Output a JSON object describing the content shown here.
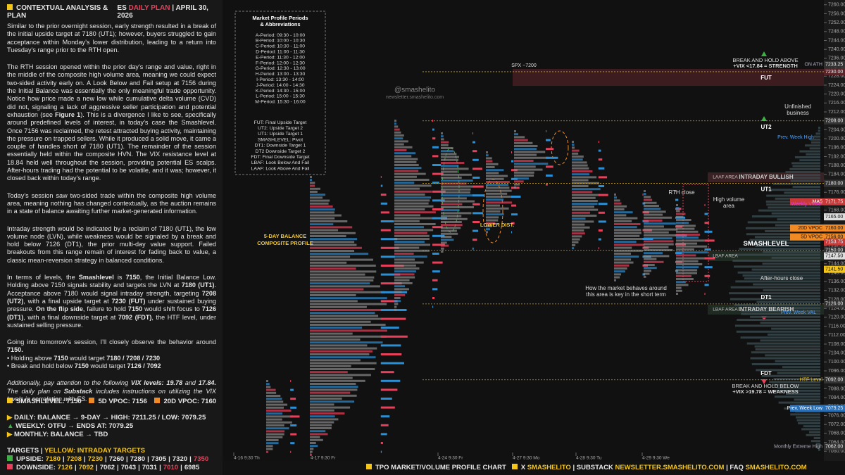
{
  "header": {
    "title": "CONTEXTUAL ANALYSIS & PLAN",
    "plan_prefix": "ES",
    "plan": "DAILY PLAN",
    "separator": "|",
    "date": "APRIL 30, 2026"
  },
  "paragraphs": [
    [
      "Similar to the prior overnight session, early strength resulted in a break of the initial upside target at 7180 (UT1); however, buyers struggled to gain acceptance within Monday’s lower distribution, leading to a return into Tuesday’s range prior to the RTH open."
    ],
    [
      "The RTH session opened within the prior day’s range and value, right in the middle of the composite high volume area, meaning we could expect two-sided activity early on. A Look Below and Fail setup at 7156 during the Initial Balance was essentially the only meaningful trade opportunity. Notice how price made a new low while cumulative delta volume (CVD) did not, signaling a lack of aggressive seller participation and potential exhaustion (see ",
      {
        "text": "Figure 1",
        "bold": true
      },
      "). This is a divergence I like to see, specifically around predefined levels of interest, in today’s case the Smashlevel. Once 7156 was reclaimed, the retest attracted buying activity, maintaining the pressure on trapped sellers. While it produced a solid move, it came a couple of handles short of 7180 (UT1). The remainder of the session essentially held within the composite HVN. The VIX resistance level at 18.84 held well throughout the session, providing potential ES scalps. After-hours trading had the potential to be volatile, and it was; however, it closed back within today’s range."
    ],
    [
      "Today’s session saw two-sided trade within the composite high volume area, meaning nothing has changed contextually, as the auction remains in a state of balance awaiting further market-generated information."
    ],
    [
      "Intraday strength would be indicated by a reclaim of 7180 (UT1), the low volume node (LVN), while weakness would be signaled by a break and hold below 7126 (DT1), the prior multi-day value support. Failed breakouts from this range remain of interest for fading back to value, a classic mean-reversion strategy in balanced conditions."
    ],
    [
      "In terms of levels, the ",
      {
        "text": "Smashlevel",
        "bold": true
      },
      " is ",
      {
        "text": "7150",
        "bold": true
      },
      ", the Initial Balance Low. Holding above 7150 signals stability and targets the LVN at ",
      {
        "text": "7180 (UT1)",
        "bold": true
      },
      ". Acceptance above 7180 would signal intraday strength, targeting ",
      {
        "text": "7208 (UT2)",
        "bold": true
      },
      ", with a final upside target at ",
      {
        "text": "7230 (FUT)",
        "bold": true
      },
      " under sustained buying pressure. ",
      {
        "text": "On the flip side",
        "bold": true
      },
      ", failure to hold ",
      {
        "text": "7150",
        "bold": true
      },
      " would shift focus to ",
      {
        "text": "7126 (DT1)",
        "bold": true
      },
      ", with a final downside target at ",
      {
        "text": "7092 (FDT)",
        "bold": true
      },
      ", the HTF level, under sustained selling pressure."
    ],
    [
      "Going into tomorrow’s session, I’ll closely observe the behavior around ",
      {
        "text": "7150.",
        "bold": true
      }
    ],
    [
      "• Holding above ",
      {
        "text": "7150",
        "bold": true
      },
      " would target ",
      {
        "text": "7180 / 7208 / 7230",
        "bold": true
      }
    ],
    [
      "• Break and hold below ",
      {
        "text": "7150",
        "bold": true
      },
      " would target ",
      {
        "text": "7126 / 7092",
        "bold": true
      }
    ],
    [
      "Additionally, pay attention to the following ",
      {
        "text": "VIX levels: 19.78",
        "bold": true
      },
      " and ",
      {
        "text": "17.84.",
        "bold": true
      },
      " The daily plan on ",
      {
        "text": "Substack",
        "bold": true
      },
      " includes instructions on utilizing the VIX levels in correlation with ES."
    ]
  ],
  "summary": {
    "levels": [
      "SMASHLEVEL: 7150",
      "5D VPOC: 7156",
      "20D VPOC: 7160"
    ],
    "context": [
      "DAILY: BALANCE → 9-DAY → HIGH: 7211.25 / LOW: 7079.25",
      "WEEKLY: OTFU → ENDS AT: 7079.25",
      "MONTHLY: BALANCE → TBD"
    ],
    "targets_title": "TARGETS",
    "targets_sep": "|",
    "targets_note": "YELLOW: INTRADAY TARGETS",
    "upside_label": "UPSIDE:",
    "upside": [
      7180,
      7208,
      7230,
      7260,
      7280,
      7305,
      7320,
      7350
    ],
    "downside_label": "DOWNSIDE:",
    "downside": [
      7126,
      7092,
      7062,
      7043,
      7031,
      7010,
      6985
    ]
  },
  "periods": {
    "title": [
      "Market Profile Periods",
      "& Abbreviations"
    ],
    "items": [
      "A-Period: 09:30 - 10:00",
      "B-Period: 10:00 - 10:30",
      "C-Period: 10:30 - 11:00",
      "D-Period: 11:00 - 11:30",
      "E-Period: 11:30 - 12:00",
      "F-Period: 12:00 - 12:30",
      "G-Period: 12:30 - 13:00",
      "H-Period: 13:00 - 13:30",
      "I-Period: 13:30 - 14:00",
      "J-Period: 14:00 - 14:30",
      "K-Period: 14:30 - 15:00",
      "L-Period: 15:00 - 15:30",
      "M-Period: 15:30 - 16:00"
    ],
    "abbreviations": [
      "FUT: Final Upside Target",
      "UT2: Upside Target 2",
      "UT1: Upside Target 1",
      "SMASHLEVEL: Pivot",
      "DT1: Downside Target 1",
      "DT2 Downside Target 2",
      "FDT: Final Downside Target",
      "LBAF: Look Below And Fail",
      "LAAF: Look Above And Fail"
    ]
  },
  "price_axis": {
    "ylim": [
      7058.5,
      7261.5
    ],
    "yticks": [
      {
        "value": 7260,
        "label": "7260.00"
      },
      {
        "value": 7256,
        "label": "7256.00"
      },
      {
        "value": 7252,
        "label": "7252.00"
      },
      {
        "value": 7248,
        "label": "7248.00"
      },
      {
        "value": 7244,
        "label": "7244.00"
      },
      {
        "value": 7240,
        "label": "7240.00"
      },
      {
        "value": 7236,
        "label": "7236.00"
      },
      {
        "value": 7232,
        "label": "7232.00"
      },
      {
        "value": 7228,
        "label": "7228.00"
      },
      {
        "value": 7224,
        "label": "7224.00"
      },
      {
        "value": 7220,
        "label": "7220.00"
      },
      {
        "value": 7216,
        "label": "7216.00"
      },
      {
        "value": 7212,
        "label": "7212.00"
      },
      {
        "value": 7208,
        "label": "7208.00"
      },
      {
        "value": 7204,
        "label": "7204.00"
      },
      {
        "value": 7200,
        "label": "7200.00"
      },
      {
        "value": 7196,
        "label": "7196.00"
      },
      {
        "value": 7192,
        "label": "7192.00"
      },
      {
        "value": 7188,
        "label": "7188.00"
      },
      {
        "value": 7184,
        "label": "7184.00"
      },
      {
        "value": 7180,
        "label": "7180.00"
      },
      {
        "value": 7176,
        "label": "7176.00"
      },
      {
        "value": 7172,
        "label": "7172.00"
      },
      {
        "value": 7168,
        "label": "7168.00"
      },
      {
        "value": 7164,
        "label": "7164.00"
      },
      {
        "value": 7160,
        "label": "7160.00"
      },
      {
        "value": 7156,
        "label": "7156.00"
      },
      {
        "value": 7152,
        "label": "7152.00"
      },
      {
        "value": 7148,
        "label": "7148.00"
      },
      {
        "value": 7144,
        "label": "7144.00"
      },
      {
        "value": 7140,
        "label": "7140.00"
      },
      {
        "value": 7136,
        "label": "7136.00"
      },
      {
        "value": 7132,
        "label": "7132.00"
      },
      {
        "value": 7128,
        "label": "7128.00"
      },
      {
        "value": 7124,
        "label": "7124.00"
      },
      {
        "value": 7120,
        "label": "7120.00"
      },
      {
        "value": 7116,
        "label": "7116.00"
      },
      {
        "value": 7112,
        "label": "7112.00"
      },
      {
        "value": 7108,
        "label": "7108.00"
      },
      {
        "value": 7104,
        "label": "7104.00"
      },
      {
        "value": 7100,
        "label": "7100.00"
      },
      {
        "value": 7096,
        "label": "7096.00"
      },
      {
        "value": 7092,
        "label": "7092.00"
      },
      {
        "value": 7088,
        "label": "7088.00"
      },
      {
        "value": 7084,
        "label": "7084.00"
      },
      {
        "value": 7080,
        "label": "7080.00"
      },
      {
        "value": 7076,
        "label": "7076.00"
      },
      {
        "value": 7072,
        "label": "7072.00"
      },
      {
        "value": 7068,
        "label": "7068.00"
      },
      {
        "value": 7064,
        "label": "7064.00"
      },
      {
        "value": 7060,
        "label": "7060.00"
      }
    ]
  },
  "levels": [
    {
      "name": "FUT",
      "value": 7230
    },
    {
      "name": "UT2",
      "value": 7208
    },
    {
      "name": "UT1",
      "value": 7180
    },
    {
      "name": "SMASHLEVEL",
      "value": 7150
    },
    {
      "name": "DT1",
      "value": 7126
    },
    {
      "name": "FDT",
      "value": 7092
    }
  ],
  "price_tags": [
    {
      "label": "7233.25",
      "value": 7233.25,
      "name": "ON ATH",
      "color": "#333333"
    },
    {
      "label": "7230.00",
      "value": 7230,
      "color": "#5a2328"
    },
    {
      "label": "7208.00",
      "value": 7208,
      "color": "#333333"
    },
    {
      "label": "7180.00",
      "value": 7180,
      "color": "#333333"
    },
    {
      "label": "7171.75",
      "value": 7171.75,
      "name": "MA5",
      "color": "#c83a3a"
    },
    {
      "label": "7165.00",
      "value": 7165,
      "color": "#dddddd"
    },
    {
      "label": "7160.00",
      "value": 7160,
      "name": "20D VPOC",
      "color": "#f08a24"
    },
    {
      "label": "7156.00",
      "value": 7156,
      "name": "5D VPOC",
      "color": "#f08a24"
    },
    {
      "label": "7153.75",
      "value": 7153.75,
      "color": "#c83a3a"
    },
    {
      "label": "7150.00",
      "value": 7150,
      "color": "#333333"
    },
    {
      "label": "7147.50",
      "value": 7147.5,
      "color": "#dddddd"
    },
    {
      "label": "7141.50",
      "value": 7141.5,
      "color": "#f5c518"
    },
    {
      "label": "7126.00",
      "value": 7126,
      "color": "#333333"
    },
    {
      "label": "7092.00",
      "value": 7092,
      "name": "HTF Level",
      "color": "#333333"
    },
    {
      "label": "7079.25",
      "value": 7079.25,
      "name": "Prev. Week Low",
      "color": "#2b6fb5"
    },
    {
      "label": "7062.00",
      "value": 7062,
      "name": "Monthly Extreme High",
      "color": "#333333"
    }
  ],
  "annotations": [
    "5-DAY BALANCE",
    "COMPOSITE PROFILE",
    "LOWER DIST.",
    "SPX ~7200",
    "@smashelito",
    "newsletter.smashelito.com",
    "BREAK AND HOLD ABOVE",
    "+VIX <17.84 = STRENGTH",
    "Unfinished",
    "business",
    "RTH close",
    "High volume",
    "area",
    "After-hours close",
    "How the market behaves around",
    "this area is key in the short term",
    "LAAF AREA",
    "INTRADAY BULLISH",
    "LBAF AREA",
    "LBAF AREA",
    "INTRADAY BEARISH",
    "BREAK AND HOLD BELOW",
    "+VIX >19.78 = WEAKNESS",
    "Weekly VWAP",
    "Prev. Week High",
    "Prev. Week VAL"
  ],
  "sessions": [
    "4-16  9:30 Th",
    "4-17  9:30 Fr",
    "4-24  9:30 Fr",
    "4-27  9:30 Mo",
    "4-28  9:30 Tu",
    "4-29  9:30 We"
  ],
  "footer": {
    "chart": "TPO MARKET/VOLUME PROFILE CHART",
    "x": "X",
    "handle": "SMASHELITO",
    "sep": "|",
    "substack": "SUBSTACK",
    "newsletter": "NEWSLETTER.SMASHELITO.COM",
    "faq": "FAQ",
    "site": "SMASHELITO.COM"
  }
}
